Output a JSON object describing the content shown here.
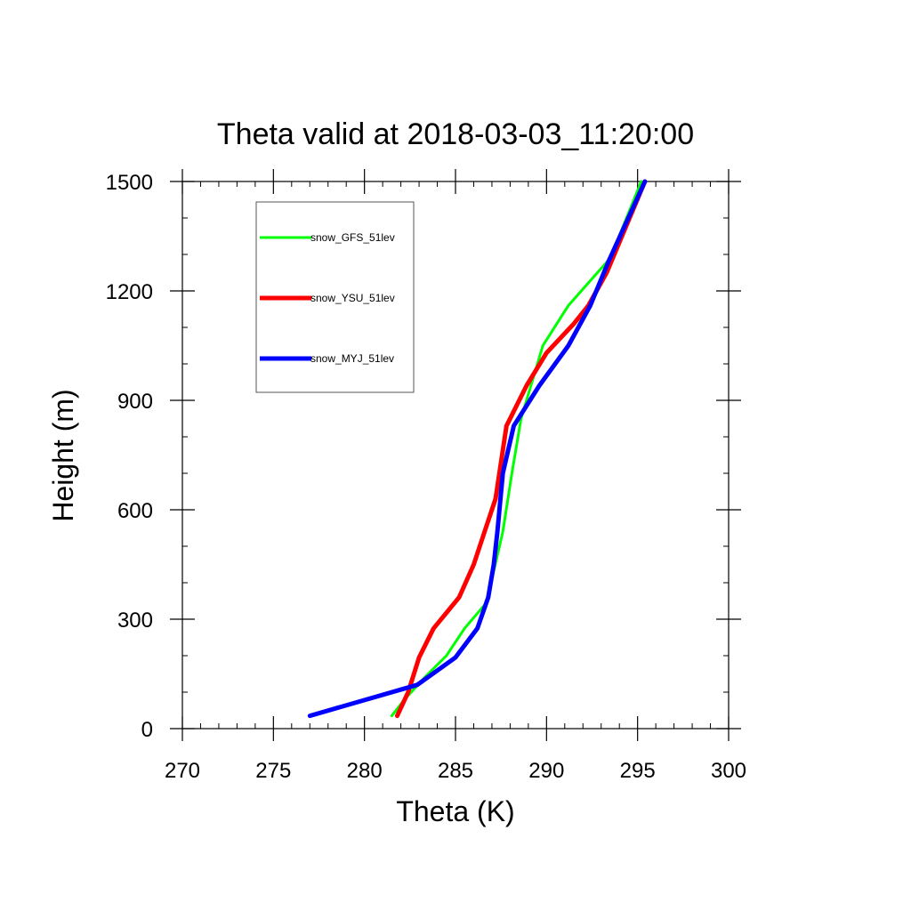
{
  "chart_data": {
    "type": "line",
    "title": "Theta valid at 2018-03-03_11:20:00",
    "xlabel": "Theta (K)",
    "ylabel": "Height (m)",
    "xlim": [
      270,
      300
    ],
    "ylim": [
      0,
      1500
    ],
    "xticks": [
      "270",
      "275",
      "280",
      "285",
      "290",
      "295",
      "300"
    ],
    "yticks": [
      "0",
      "300",
      "600",
      "900",
      "1200",
      "1500"
    ],
    "grid": false,
    "legend_position": "top-left",
    "series": [
      {
        "name": "snow_GFS_51lev",
        "color": "#00ff00",
        "width": 3,
        "x": [
          281.5,
          282.2,
          283.3,
          284.5,
          285.5,
          286.7,
          287.6,
          288.1,
          288.6,
          289.8,
          291.2,
          293.5,
          295.2
        ],
        "y": [
          35,
          80,
          140,
          200,
          275,
          345,
          540,
          700,
          850,
          1050,
          1160,
          1290,
          1500
        ]
      },
      {
        "name": "snow_YSU_51lev",
        "color": "#ff0000",
        "width": 5,
        "x": [
          281.8,
          282.4,
          283.0,
          283.8,
          285.2,
          286.0,
          286.6,
          287.2,
          287.8,
          288.9,
          290.0,
          291.5,
          292.3,
          293.3,
          295.4
        ],
        "y": [
          35,
          100,
          195,
          275,
          360,
          450,
          540,
          630,
          830,
          940,
          1030,
          1110,
          1160,
          1250,
          1500
        ]
      },
      {
        "name": "snow_MYJ_51lev",
        "color": "#0000ff",
        "width": 5,
        "x": [
          277.0,
          282.9,
          285.0,
          286.2,
          286.8,
          287.1,
          287.3,
          287.6,
          288.2,
          289.6,
          291.2,
          292.4,
          293.4,
          295.4
        ],
        "y": [
          35,
          120,
          195,
          275,
          360,
          450,
          540,
          700,
          830,
          940,
          1050,
          1160,
          1280,
          1500
        ]
      }
    ]
  }
}
